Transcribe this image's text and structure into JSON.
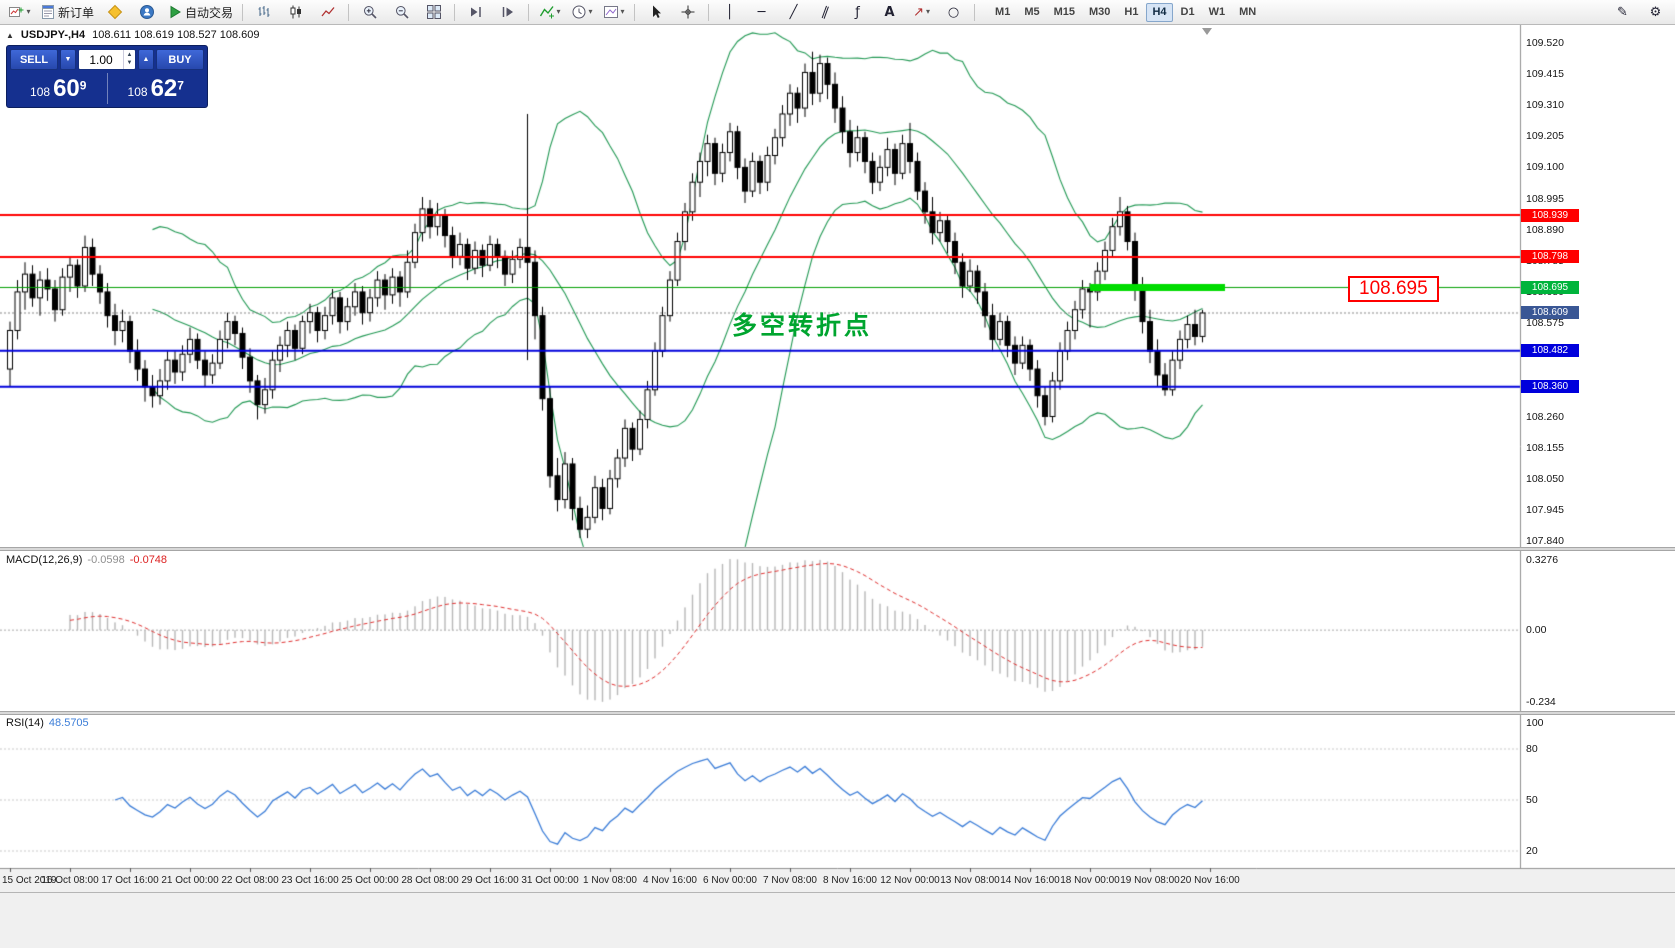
{
  "toolbar": {
    "new_order_label": "新订单",
    "autotrading_label": "自动交易",
    "timeframes": [
      "M1",
      "M5",
      "M15",
      "M30",
      "H1",
      "H4",
      "D1",
      "W1",
      "MN"
    ],
    "active_timeframe": "H4",
    "icon_names": [
      "new-chart",
      "new-order",
      "metaeditor",
      "community",
      "autotrading",
      "bar-chart",
      "candlestick-chart",
      "line-chart",
      "zoom-in",
      "zoom-out",
      "tile-windows",
      "scroll-to-end",
      "chart-shift",
      "indicators",
      "periods",
      "templates",
      "cursor",
      "crosshair",
      "vertical-line",
      "horizontal-line",
      "trendline",
      "channel",
      "fibonacci",
      "text",
      "arrows",
      "shapes",
      "edit",
      "settings"
    ]
  },
  "trade_panel": {
    "sell_label": "SELL",
    "buy_label": "BUY",
    "volume": "1.00",
    "sell_price": {
      "prefix": "108",
      "big": "60",
      "sup": "9"
    },
    "buy_price": {
      "prefix": "108",
      "big": "62",
      "sup": "7"
    }
  },
  "chart": {
    "symbol_label": "USDJPY-,H4",
    "ohlc_label": "108.611 108.619 108.527 108.609",
    "annotation": "多空转折点",
    "big_price_label": "108.695",
    "price_axis_labels": [
      "109.520",
      "109.415",
      "109.310",
      "109.205",
      "109.100",
      "108.995",
      "108.890",
      "108.785",
      "108.680",
      "108.575",
      "108.470",
      "108.365",
      "108.260",
      "108.155",
      "108.050",
      "107.945",
      "107.840"
    ],
    "axis_boxes": [
      {
        "text": "108.939",
        "value": 108.939,
        "bg": "#FF0000"
      },
      {
        "text": "108.798",
        "value": 108.798,
        "bg": "#FF0000"
      },
      {
        "text": "108.695",
        "value": 108.695,
        "bg": "#00B43C"
      },
      {
        "text": "108.609",
        "value": 108.609,
        "bg": "#3A5795"
      },
      {
        "text": "108.482",
        "value": 108.482,
        "bg": "#0000DC"
      },
      {
        "text": "108.360",
        "value": 108.36,
        "bg": "#0000DC"
      }
    ],
    "colors": {
      "red_line": "#FF0000",
      "blue_line": "#0000DC",
      "green_line": "#00A000",
      "segment": "#00DC00",
      "bollinger": "#229954",
      "bid_line": "#888888",
      "bull": "#FFFFFF",
      "bear": "#000000",
      "outline": "#000000"
    }
  },
  "macd": {
    "label": "MACD(12,26,9)",
    "value_main": "-0.0598",
    "value_signal": "-0.0748",
    "axis": [
      "0.3276",
      "0.00",
      "-0.234"
    ],
    "colors": {
      "histogram": "#B8B8B8",
      "signal": "#E03030"
    }
  },
  "rsi": {
    "label": "RSI(14)",
    "value": "48.5705",
    "axis": [
      "100",
      "80",
      "50",
      "20"
    ],
    "levels": [
      80,
      50,
      20
    ],
    "color": "#3B7DD8"
  },
  "chart_data": {
    "type": "candlestick",
    "symbol": "USDJPY-",
    "period": "H4",
    "ohlc_current": {
      "open": 108.611,
      "high": 108.619,
      "low": 108.527,
      "close": 108.609
    },
    "bid": 108.609,
    "ask": 108.627,
    "ylim": [
      107.82,
      109.58
    ],
    "bollinger": {
      "period": 20,
      "deviation": 2
    },
    "macd_params": {
      "fast": 12,
      "slow": 26,
      "signal": 9
    },
    "rsi_params": {
      "period": 14
    },
    "h_lines": [
      {
        "value": 108.939,
        "color": "#FF0000",
        "width": 2
      },
      {
        "value": 108.798,
        "color": "#FF0000",
        "width": 2
      },
      {
        "value": 108.695,
        "color": "#00A000",
        "width": 1
      },
      {
        "value": 108.482,
        "color": "#0000DC",
        "width": 2
      },
      {
        "value": 108.36,
        "color": "#0000DC",
        "width": 2
      }
    ],
    "trend_segment": {
      "price": 108.695,
      "from_bar": 144,
      "to_bar": 162
    },
    "x_labels": [
      {
        "bar": 0,
        "text": "15 Oct 2019"
      },
      {
        "bar": 8,
        "text": "16 Oct 08:00"
      },
      {
        "bar": 16,
        "text": "17 Oct 16:00"
      },
      {
        "bar": 24,
        "text": "21 Oct 00:00"
      },
      {
        "bar": 32,
        "text": "22 Oct 08:00"
      },
      {
        "bar": 40,
        "text": "23 Oct 16:00"
      },
      {
        "bar": 48,
        "text": "25 Oct 00:00"
      },
      {
        "bar": 56,
        "text": "28 Oct 08:00"
      },
      {
        "bar": 64,
        "text": "29 Oct 16:00"
      },
      {
        "bar": 72,
        "text": "31 Oct 00:00"
      },
      {
        "bar": 80,
        "text": "1 Nov 08:00"
      },
      {
        "bar": 88,
        "text": "4 Nov 16:00"
      },
      {
        "bar": 96,
        "text": "6 Nov 00:00"
      },
      {
        "bar": 104,
        "text": "7 Nov 08:00"
      },
      {
        "bar": 112,
        "text": "8 Nov 16:00"
      },
      {
        "bar": 120,
        "text": "12 Nov 00:00"
      },
      {
        "bar": 128,
        "text": "13 Nov 08:00"
      },
      {
        "bar": 136,
        "text": "14 Nov 16:00"
      },
      {
        "bar": 144,
        "text": "18 Nov 00:00"
      },
      {
        "bar": 152,
        "text": "19 Nov 08:00"
      },
      {
        "bar": 160,
        "text": "20 Nov 16:00"
      }
    ],
    "candles": [
      [
        108.42,
        108.58,
        108.36,
        108.55
      ],
      [
        108.55,
        108.72,
        108.52,
        108.68
      ],
      [
        108.68,
        108.78,
        108.62,
        108.74
      ],
      [
        108.74,
        108.77,
        108.63,
        108.66
      ],
      [
        108.66,
        108.75,
        108.6,
        108.72
      ],
      [
        108.72,
        108.76,
        108.65,
        108.69
      ],
      [
        108.69,
        108.72,
        108.58,
        108.62
      ],
      [
        108.62,
        108.76,
        108.6,
        108.73
      ],
      [
        108.73,
        108.8,
        108.68,
        108.77
      ],
      [
        108.77,
        108.79,
        108.66,
        108.7
      ],
      [
        108.7,
        108.87,
        108.68,
        108.83
      ],
      [
        108.83,
        108.86,
        108.7,
        108.74
      ],
      [
        108.74,
        108.77,
        108.64,
        108.68
      ],
      [
        108.68,
        108.71,
        108.56,
        108.6
      ],
      [
        108.6,
        108.64,
        108.5,
        108.55
      ],
      [
        108.55,
        108.62,
        108.51,
        108.58
      ],
      [
        108.58,
        108.6,
        108.44,
        108.48
      ],
      [
        108.48,
        108.52,
        108.38,
        108.42
      ],
      [
        108.42,
        108.45,
        108.31,
        108.36
      ],
      [
        108.36,
        108.4,
        108.29,
        108.33
      ],
      [
        108.33,
        108.42,
        108.3,
        108.38
      ],
      [
        108.38,
        108.48,
        108.35,
        108.45
      ],
      [
        108.45,
        108.48,
        108.37,
        108.41
      ],
      [
        108.41,
        108.5,
        108.38,
        108.47
      ],
      [
        108.47,
        108.56,
        108.44,
        108.52
      ],
      [
        108.52,
        108.54,
        108.42,
        108.45
      ],
      [
        108.45,
        108.48,
        108.36,
        108.4
      ],
      [
        108.4,
        108.47,
        108.37,
        108.44
      ],
      [
        108.44,
        108.55,
        108.42,
        108.52
      ],
      [
        108.52,
        108.61,
        108.49,
        108.58
      ],
      [
        108.58,
        108.6,
        108.5,
        108.54
      ],
      [
        108.54,
        108.56,
        108.42,
        108.46
      ],
      [
        108.46,
        108.49,
        108.34,
        108.38
      ],
      [
        108.38,
        108.4,
        108.25,
        108.3
      ],
      [
        108.3,
        108.39,
        108.27,
        108.35
      ],
      [
        108.35,
        108.48,
        108.32,
        108.45
      ],
      [
        108.45,
        108.53,
        108.41,
        108.5
      ],
      [
        108.5,
        108.58,
        108.46,
        108.55
      ],
      [
        108.55,
        108.57,
        108.45,
        108.49
      ],
      [
        108.49,
        108.6,
        108.47,
        108.58
      ],
      [
        108.58,
        108.64,
        108.54,
        108.61
      ],
      [
        108.61,
        108.63,
        108.51,
        108.55
      ],
      [
        108.55,
        108.63,
        108.52,
        108.6
      ],
      [
        108.6,
        108.69,
        108.57,
        108.66
      ],
      [
        108.66,
        108.68,
        108.54,
        108.58
      ],
      [
        108.58,
        108.66,
        108.55,
        108.63
      ],
      [
        108.63,
        108.71,
        108.6,
        108.68
      ],
      [
        108.68,
        108.7,
        108.57,
        108.61
      ],
      [
        108.61,
        108.69,
        108.58,
        108.66
      ],
      [
        108.66,
        108.75,
        108.63,
        108.72
      ],
      [
        108.72,
        108.74,
        108.62,
        108.67
      ],
      [
        108.67,
        108.76,
        108.64,
        108.73
      ],
      [
        108.73,
        108.75,
        108.63,
        108.68
      ],
      [
        108.68,
        108.82,
        108.66,
        108.78
      ],
      [
        108.78,
        108.91,
        108.76,
        108.88
      ],
      [
        108.88,
        109.0,
        108.85,
        108.96
      ],
      [
        108.96,
        108.99,
        108.86,
        108.9
      ],
      [
        108.9,
        108.98,
        108.87,
        108.94
      ],
      [
        108.94,
        108.96,
        108.83,
        108.87
      ],
      [
        108.87,
        108.9,
        108.76,
        108.8
      ],
      [
        108.8,
        108.88,
        108.77,
        108.84
      ],
      [
        108.84,
        108.86,
        108.72,
        108.76
      ],
      [
        108.76,
        108.85,
        108.74,
        108.82
      ],
      [
        108.82,
        108.84,
        108.73,
        108.77
      ],
      [
        108.77,
        108.87,
        108.75,
        108.84
      ],
      [
        108.84,
        108.86,
        108.76,
        108.8
      ],
      [
        108.8,
        108.82,
        108.7,
        108.74
      ],
      [
        108.74,
        108.82,
        108.71,
        108.79
      ],
      [
        108.79,
        108.86,
        108.76,
        108.83
      ],
      [
        108.83,
        109.28,
        108.45,
        108.78
      ],
      [
        108.78,
        108.82,
        108.52,
        108.6
      ],
      [
        108.6,
        108.63,
        108.28,
        108.32
      ],
      [
        108.32,
        108.36,
        108.02,
        108.06
      ],
      [
        108.06,
        108.12,
        107.94,
        107.98
      ],
      [
        107.98,
        108.14,
        107.95,
        108.1
      ],
      [
        108.1,
        108.12,
        107.91,
        107.95
      ],
      [
        107.95,
        107.99,
        107.85,
        107.88
      ],
      [
        107.88,
        107.96,
        107.85,
        107.92
      ],
      [
        107.92,
        108.06,
        107.9,
        108.02
      ],
      [
        108.02,
        108.05,
        107.91,
        107.95
      ],
      [
        107.95,
        108.08,
        107.93,
        108.05
      ],
      [
        108.05,
        108.15,
        108.02,
        108.12
      ],
      [
        108.12,
        108.25,
        108.09,
        108.22
      ],
      [
        108.22,
        108.24,
        108.11,
        108.15
      ],
      [
        108.15,
        108.28,
        108.13,
        108.25
      ],
      [
        108.25,
        108.38,
        108.22,
        108.35
      ],
      [
        108.35,
        108.51,
        108.33,
        108.48
      ],
      [
        108.48,
        108.63,
        108.46,
        108.6
      ],
      [
        108.6,
        108.75,
        108.58,
        108.72
      ],
      [
        108.72,
        108.88,
        108.7,
        108.85
      ],
      [
        108.85,
        108.98,
        108.82,
        108.95
      ],
      [
        108.95,
        109.08,
        108.92,
        109.05
      ],
      [
        109.05,
        109.15,
        109.0,
        109.12
      ],
      [
        109.12,
        109.21,
        109.07,
        109.18
      ],
      [
        109.18,
        109.2,
        109.04,
        109.08
      ],
      [
        109.08,
        109.18,
        109.05,
        109.15
      ],
      [
        109.15,
        109.25,
        109.12,
        109.22
      ],
      [
        109.22,
        109.24,
        109.06,
        109.1
      ],
      [
        109.1,
        109.13,
        108.98,
        109.02
      ],
      [
        109.02,
        109.15,
        109.0,
        109.12
      ],
      [
        109.12,
        109.14,
        109.01,
        109.05
      ],
      [
        109.05,
        109.17,
        109.02,
        109.14
      ],
      [
        109.14,
        109.23,
        109.11,
        109.2
      ],
      [
        109.2,
        109.31,
        109.17,
        109.28
      ],
      [
        109.28,
        109.38,
        109.24,
        109.35
      ],
      [
        109.35,
        109.37,
        109.25,
        109.3
      ],
      [
        109.3,
        109.45,
        109.27,
        109.42
      ],
      [
        109.42,
        109.49,
        109.31,
        109.35
      ],
      [
        109.35,
        109.48,
        109.32,
        109.45
      ],
      [
        109.45,
        109.47,
        109.33,
        109.38
      ],
      [
        109.38,
        109.42,
        109.25,
        109.3
      ],
      [
        109.3,
        109.34,
        109.18,
        109.22
      ],
      [
        109.22,
        109.26,
        109.1,
        109.15
      ],
      [
        109.15,
        109.24,
        109.12,
        109.2
      ],
      [
        109.2,
        109.22,
        109.08,
        109.12
      ],
      [
        109.12,
        109.15,
        109.01,
        109.05
      ],
      [
        109.05,
        109.14,
        109.02,
        109.1
      ],
      [
        109.1,
        109.2,
        109.07,
        109.16
      ],
      [
        109.16,
        109.18,
        109.04,
        109.08
      ],
      [
        109.08,
        109.21,
        109.06,
        109.18
      ],
      [
        109.18,
        109.25,
        109.08,
        109.12
      ],
      [
        109.12,
        109.15,
        108.99,
        109.02
      ],
      [
        109.02,
        109.05,
        108.91,
        108.95
      ],
      [
        108.95,
        109.0,
        108.84,
        108.88
      ],
      [
        108.88,
        108.95,
        108.85,
        108.92
      ],
      [
        108.92,
        108.94,
        108.81,
        108.85
      ],
      [
        108.85,
        108.88,
        108.74,
        108.78
      ],
      [
        108.78,
        108.81,
        108.66,
        108.7
      ],
      [
        108.7,
        108.79,
        108.68,
        108.75
      ],
      [
        108.75,
        108.77,
        108.64,
        108.68
      ],
      [
        108.68,
        108.71,
        108.56,
        108.6
      ],
      [
        108.6,
        108.64,
        108.48,
        108.52
      ],
      [
        108.52,
        108.61,
        108.5,
        108.58
      ],
      [
        108.58,
        108.6,
        108.46,
        108.5
      ],
      [
        108.5,
        108.53,
        108.4,
        108.44
      ],
      [
        108.44,
        108.53,
        108.42,
        108.5
      ],
      [
        108.5,
        108.52,
        108.38,
        108.42
      ],
      [
        108.42,
        108.45,
        108.29,
        108.33
      ],
      [
        108.33,
        108.36,
        108.23,
        108.26
      ],
      [
        108.26,
        108.41,
        108.24,
        108.38
      ],
      [
        108.38,
        108.51,
        108.35,
        108.48
      ],
      [
        108.48,
        108.58,
        108.45,
        108.55
      ],
      [
        108.55,
        108.65,
        108.52,
        108.62
      ],
      [
        108.62,
        108.72,
        108.59,
        108.69
      ],
      [
        108.69,
        108.71,
        108.56,
        108.68
      ],
      [
        108.68,
        108.78,
        108.65,
        108.75
      ],
      [
        108.75,
        108.85,
        108.72,
        108.82
      ],
      [
        108.82,
        108.93,
        108.8,
        108.9
      ],
      [
        108.9,
        109.0,
        108.87,
        108.95
      ],
      [
        108.95,
        108.97,
        108.82,
        108.85
      ],
      [
        108.85,
        108.88,
        108.65,
        108.7
      ],
      [
        108.7,
        108.73,
        108.54,
        108.58
      ],
      [
        108.58,
        108.62,
        108.44,
        108.48
      ],
      [
        108.48,
        108.52,
        108.36,
        108.4
      ],
      [
        108.4,
        108.44,
        108.33,
        108.35
      ],
      [
        108.35,
        108.48,
        108.33,
        108.45
      ],
      [
        108.45,
        108.55,
        108.42,
        108.52
      ],
      [
        108.52,
        108.6,
        108.49,
        108.57
      ],
      [
        108.57,
        108.62,
        108.5,
        108.53
      ],
      [
        108.53,
        108.62,
        108.51,
        108.609
      ]
    ]
  }
}
